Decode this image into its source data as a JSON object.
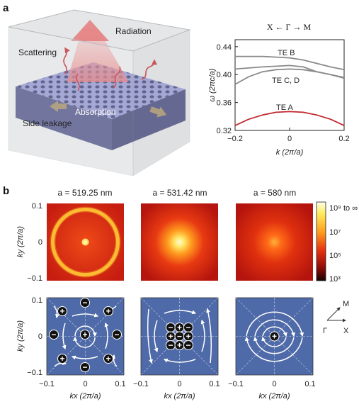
{
  "panel_a": {
    "label": "a",
    "schematic": {
      "radiation": "Radiation",
      "scattering": "Scattering",
      "absorption": "Absorption",
      "side_leakage": "Side leakage"
    }
  },
  "panel_b": {
    "label": "b",
    "column_titles": [
      "a = 519.25 nm",
      "a = 531.42 nm",
      "a = 580 nm"
    ],
    "colorbar": {
      "labels": [
        "10⁹ to ∞",
        "10⁷",
        "10⁵",
        "10³"
      ]
    },
    "ky_label": "ky (2π/a)",
    "kx_label": "kx (2π/a)",
    "y_ticks": [
      "0.1",
      "0",
      "−0.1"
    ],
    "x_ticks": [
      "−0.1",
      "0",
      "0.1"
    ],
    "direction_inset": {
      "gamma": "Γ",
      "x": "X",
      "m": "M"
    },
    "charges": {
      "left": [
        "+",
        "−",
        "+",
        "−",
        "+",
        "−",
        "+",
        "−",
        "+"
      ],
      "middle": [
        "−",
        "+",
        "−",
        "+",
        "−",
        "+",
        "−",
        "+",
        "−"
      ],
      "right": [
        "+"
      ]
    },
    "colors": {
      "field_bg": "#4f6aa8",
      "charge_fill": "#111111"
    }
  },
  "chart_data": {
    "type": "line",
    "title": "X ← Γ → M",
    "xlabel": "k (2π/a)",
    "ylabel": "ω (2πc/a)",
    "xlim": [
      -0.2,
      0.2
    ],
    "ylim": [
      0.32,
      0.45
    ],
    "xticks": [
      "−0.2",
      "0",
      "0.2"
    ],
    "yticks": [
      "0.44",
      "0.40",
      "0.36",
      "0.32"
    ],
    "series": [
      {
        "name": "TE B",
        "color": "#8a8a8a",
        "x": [
          -0.2,
          -0.1,
          0,
          0.05,
          0.1,
          0.15,
          0.2
        ],
        "y": [
          0.426,
          0.426,
          0.424,
          0.421,
          0.416,
          0.411,
          0.407
        ]
      },
      {
        "name": "TE C, D",
        "color": "#8a8a8a",
        "x": [
          -0.2,
          -0.1,
          0,
          0.05,
          0.1,
          0.15,
          0.2
        ],
        "y": [
          0.408,
          0.411,
          0.413,
          0.411,
          0.404,
          0.4,
          0.396
        ]
      },
      {
        "name": "",
        "color": "#8a8a8a",
        "x": [
          -0.2,
          -0.15,
          -0.1,
          -0.05,
          0,
          0.05,
          0.1,
          0.15,
          0.2
        ],
        "y": [
          0.386,
          0.397,
          0.404,
          0.407,
          0.408,
          0.407,
          0.404,
          0.4,
          0.395
        ]
      },
      {
        "name": "TE A",
        "color": "#c0282e",
        "x": [
          -0.2,
          -0.15,
          -0.1,
          -0.05,
          0,
          0.05,
          0.1,
          0.15,
          0.2
        ],
        "y": [
          0.327,
          0.336,
          0.342,
          0.346,
          0.347,
          0.346,
          0.342,
          0.336,
          0.327
        ]
      }
    ]
  }
}
